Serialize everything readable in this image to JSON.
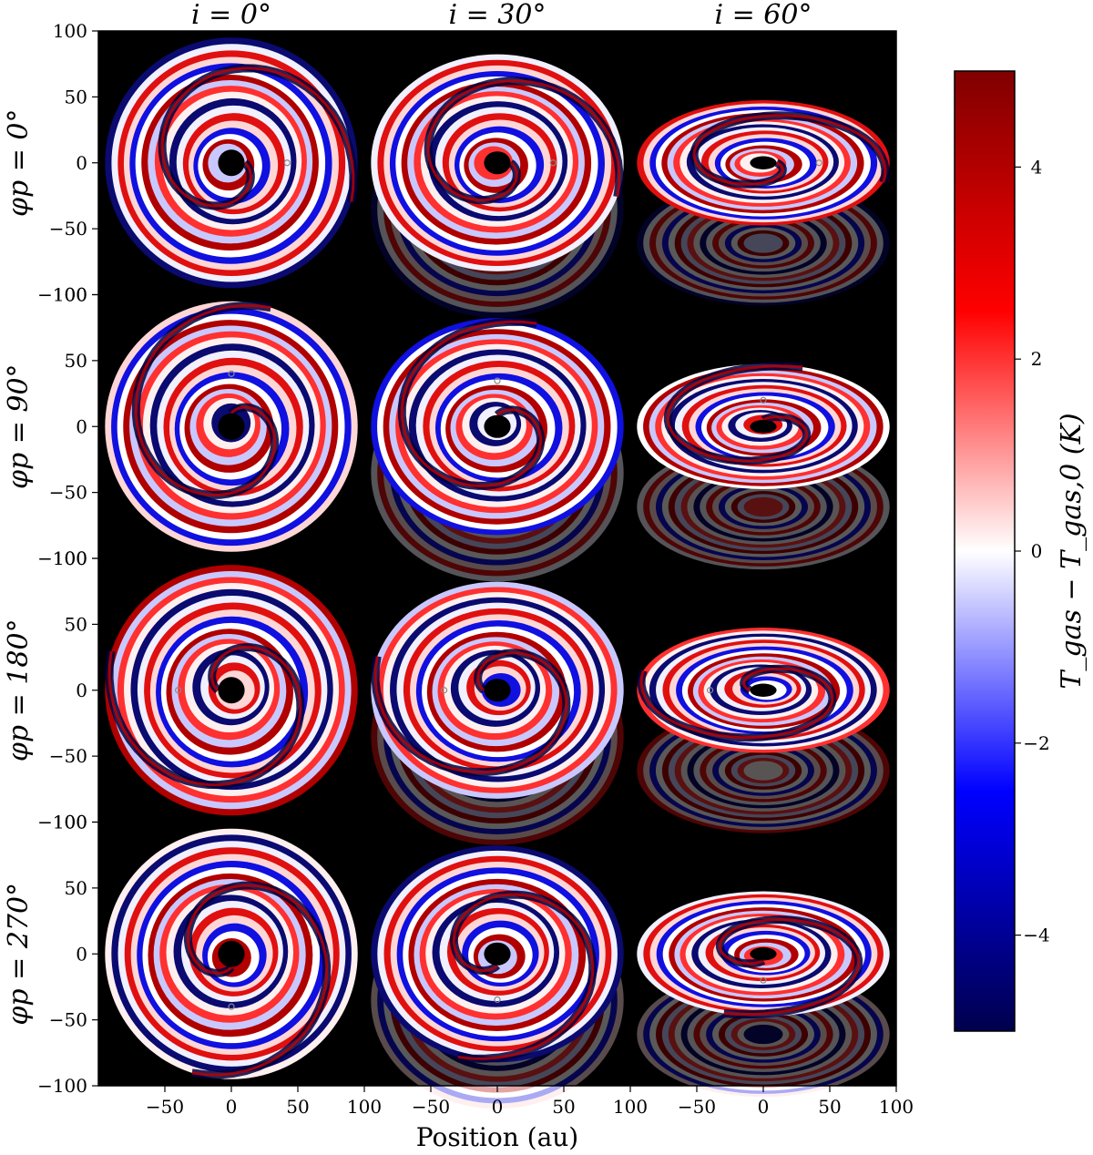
{
  "chart_data": {
    "type": "heatmap",
    "columns": [
      {
        "inclination": 0,
        "label": "i = 0°"
      },
      {
        "inclination": 30,
        "label": "i = 30°"
      },
      {
        "inclination": 60,
        "label": "i = 60°"
      }
    ],
    "rows": [
      {
        "phi_p": 0,
        "label": "φp = 0°",
        "planet_xy": [
          42,
          0
        ]
      },
      {
        "phi_p": 90,
        "label": "φp = 90°",
        "planet_xy": [
          0,
          40
        ]
      },
      {
        "phi_p": 180,
        "label": "φp = 180°",
        "planet_xy": [
          -40,
          0
        ]
      },
      {
        "phi_p": 270,
        "label": "φp = 270°",
        "planet_xy": [
          0,
          -40
        ]
      }
    ],
    "xlabel": "Position (au)",
    "xlim": [
      -100,
      100
    ],
    "ylim": [
      -100,
      100
    ],
    "xticks": [
      -50,
      0,
      50,
      100
    ],
    "yticks": [
      100,
      50,
      0,
      -50,
      -100
    ],
    "disk_outer_radius_au": 95,
    "disk_inner_radius_au": 10,
    "colorbar": {
      "label": "T_gas − T_gas,0 (K)",
      "range": [
        -5,
        5
      ],
      "ticks": [
        4,
        2,
        0,
        -2,
        -4
      ],
      "colormap": "seismic",
      "colors": [
        "#00004d",
        "#0000ff",
        "#ffffff",
        "#ff0000",
        "#800000"
      ]
    },
    "background": "#000000"
  }
}
